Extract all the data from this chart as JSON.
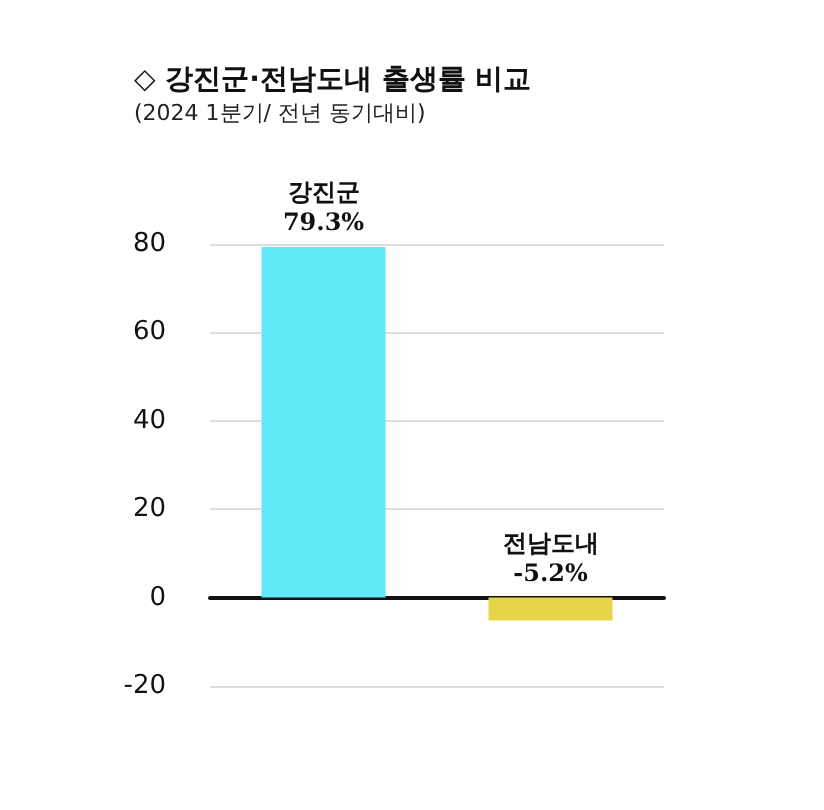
{
  "chart_data": {
    "type": "bar",
    "title": "◇ 강진군·전남도내 출생률 비교",
    "subtitle": "(2024 1분기/ 전년 동기대비)",
    "categories": [
      "강진군",
      "전남도내"
    ],
    "values": [
      79.3,
      -5.2
    ],
    "value_labels": [
      "79.3%",
      "-5.2%"
    ],
    "colors": [
      "#5fe9f7",
      "#e6d548"
    ],
    "ylim": [
      -20,
      80
    ],
    "yticks": [
      -20,
      0,
      20,
      40,
      60,
      80
    ],
    "grid": "y"
  }
}
